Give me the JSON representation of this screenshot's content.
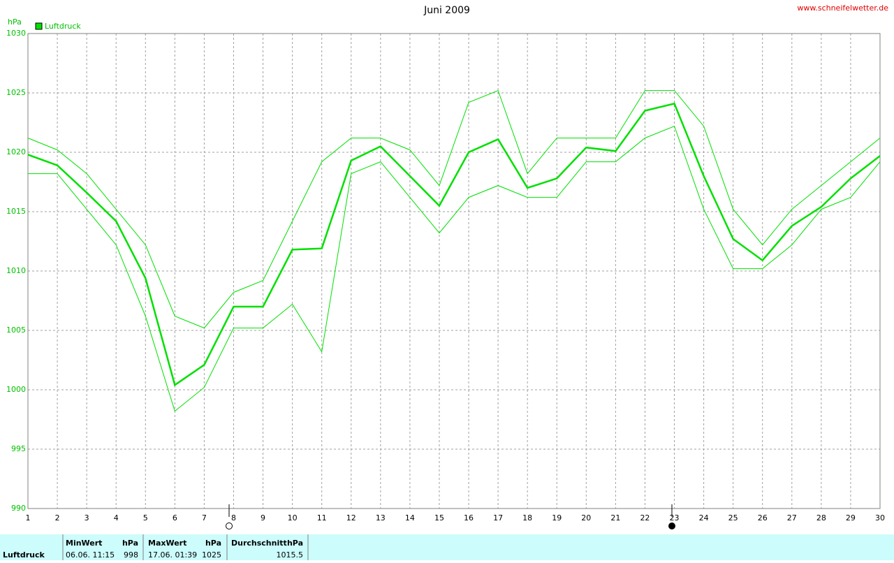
{
  "chart_data": {
    "type": "line",
    "title": "Juni 2009",
    "source": "www.schneifelwetter.de",
    "y_label": "hPa",
    "x": [
      1,
      2,
      3,
      4,
      5,
      6,
      7,
      8,
      9,
      10,
      11,
      12,
      13,
      14,
      15,
      16,
      17,
      18,
      19,
      20,
      21,
      22,
      23,
      24,
      25,
      26,
      27,
      28,
      29,
      30
    ],
    "xlim": [
      1,
      30
    ],
    "xticks": [
      1,
      2,
      3,
      4,
      5,
      6,
      7,
      8,
      9,
      10,
      11,
      12,
      13,
      14,
      15,
      16,
      17,
      18,
      19,
      20,
      21,
      22,
      23,
      24,
      25,
      26,
      27,
      28,
      29,
      30
    ],
    "ylim": [
      990,
      1030
    ],
    "yticks": [
      990,
      995,
      1000,
      1005,
      1010,
      1015,
      1020,
      1025,
      1030
    ],
    "grid": true,
    "legend": "top-left",
    "series": [
      {
        "name": "Luftdruck",
        "color": "#00e000",
        "width": 2.5,
        "values": [
          1019.8,
          1018.9,
          1016.6,
          1014.2,
          1009.4,
          1000.4,
          1002.1,
          1007.0,
          1007.0,
          1011.8,
          1011.9,
          1019.3,
          1020.5,
          1018.0,
          1015.5,
          1020.0,
          1021.1,
          1017.0,
          1017.8,
          1020.4,
          1020.1,
          1023.5,
          1024.1,
          1018.0,
          1012.7,
          1010.9,
          1013.8,
          1015.4,
          1017.8,
          1019.7
        ]
      },
      {
        "color": "#00e000",
        "width": 1,
        "values": [
          1021.2,
          1020.2,
          1018.2,
          1015.2,
          1012.2,
          1006.2,
          1005.2,
          1008.2,
          1009.2,
          1014.2,
          1019.2,
          1021.2,
          1021.2,
          1020.2,
          1017.2,
          1024.2,
          1025.2,
          1018.2,
          1021.2,
          1021.2,
          1021.2,
          1025.2,
          1025.2,
          1022.2,
          1015.2,
          1012.2,
          1015.2,
          1017.2,
          1019.2,
          1021.2
        ]
      },
      {
        "color": "#00e000",
        "width": 1,
        "values": [
          1018.2,
          1018.2,
          1015.2,
          1012.2,
          1006.2,
          998.2,
          1000.2,
          1005.2,
          1005.2,
          1007.2,
          1003.2,
          1018.2,
          1019.2,
          1016.2,
          1013.2,
          1016.2,
          1017.2,
          1016.2,
          1016.2,
          1019.2,
          1019.2,
          1021.2,
          1022.2,
          1015.2,
          1010.2,
          1010.2,
          1012.2,
          1015.2,
          1016.2,
          1019.2
        ]
      }
    ]
  },
  "summary": {
    "label": "Luftdruck",
    "min": {
      "header": "MinWert",
      "unit": "hPa",
      "time": "06.06.  11:15",
      "value": "998"
    },
    "max": {
      "header": "MaxWert",
      "unit": "hPa",
      "time": "17.06.  01:39",
      "value": "1025"
    },
    "avg": {
      "header": "Durchschnitt",
      "unit": "hPa",
      "value": "1015.5"
    }
  }
}
